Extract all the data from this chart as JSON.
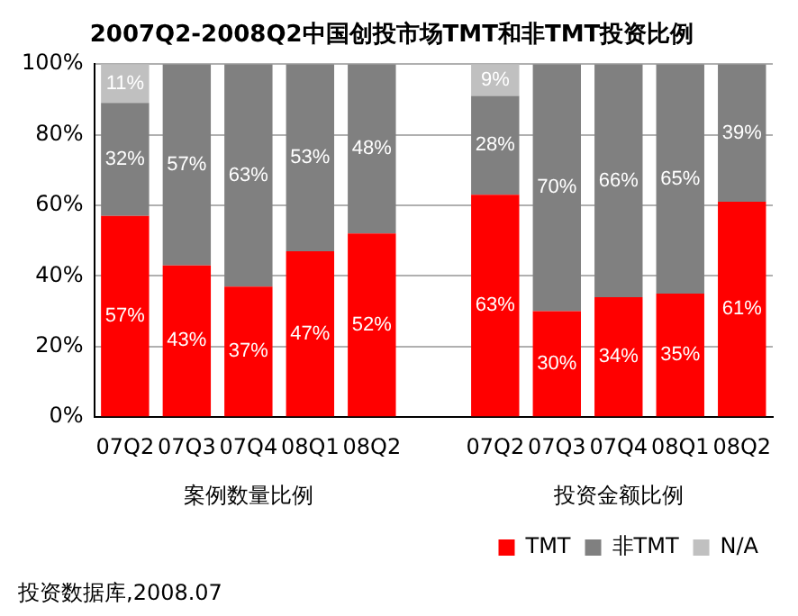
{
  "chart_data": {
    "type": "bar",
    "title": "2007Q2-2008Q2中国创投市场TMT和非TMT投资比例",
    "categories": [
      "07Q2",
      "07Q3",
      "07Q4",
      "08Q1",
      "08Q2",
      null,
      "07Q2",
      "07Q3",
      "07Q4",
      "08Q1",
      "08Q2"
    ],
    "series": [
      {
        "name": "TMT",
        "color": "#ff0000",
        "values": [
          57,
          43,
          37,
          47,
          52,
          null,
          63,
          30,
          34,
          35,
          61
        ],
        "value_labels": [
          "57%",
          "43%",
          "37%",
          "47%",
          "52%",
          null,
          "63%",
          "30%",
          "34%",
          "35%",
          "61%"
        ]
      },
      {
        "name": "非TMT",
        "color": "#808080",
        "values": [
          32,
          57,
          63,
          53,
          48,
          null,
          28,
          70,
          66,
          65,
          39
        ],
        "value_labels": [
          "32%",
          "57%",
          "63%",
          "53%",
          "48%",
          null,
          "28%",
          "70%",
          "66%",
          "65%",
          "39%"
        ]
      },
      {
        "name": "N/A",
        "color": "#c0c0c0",
        "values": [
          11,
          null,
          null,
          null,
          null,
          null,
          9,
          null,
          null,
          null,
          null
        ],
        "value_labels": [
          "11%",
          null,
          null,
          null,
          null,
          null,
          "9%",
          null,
          null,
          null,
          null
        ]
      }
    ],
    "stacked": true,
    "ylim": [
      0,
      100
    ],
    "yticks": [
      {
        "value": 0,
        "label": "0%"
      },
      {
        "value": 20,
        "label": "20%"
      },
      {
        "value": 40,
        "label": "40%"
      },
      {
        "value": 60,
        "label": "60%"
      },
      {
        "value": 80,
        "label": "80%"
      },
      {
        "value": 100,
        "label": "100%"
      }
    ],
    "grid": "y",
    "legend": "bottom",
    "annotations": [
      "案例数量比例",
      "投资金额比例",
      "投资数据库,2008.07"
    ]
  }
}
